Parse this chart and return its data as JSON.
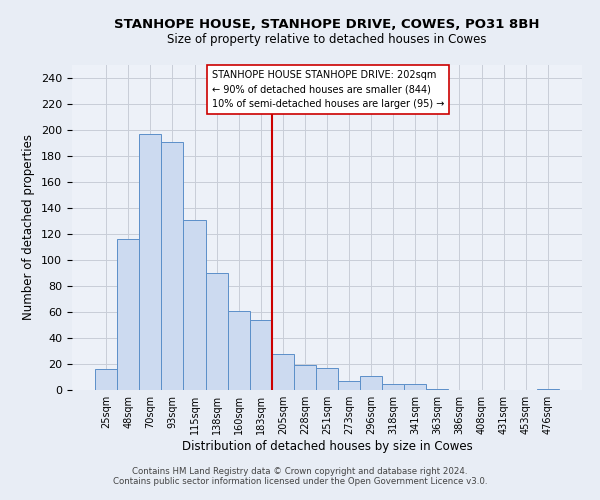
{
  "title": "STANHOPE HOUSE, STANHOPE DRIVE, COWES, PO31 8BH",
  "subtitle": "Size of property relative to detached houses in Cowes",
  "xlabel": "Distribution of detached houses by size in Cowes",
  "ylabel": "Number of detached properties",
  "bar_labels": [
    "25sqm",
    "48sqm",
    "70sqm",
    "93sqm",
    "115sqm",
    "138sqm",
    "160sqm",
    "183sqm",
    "205sqm",
    "228sqm",
    "251sqm",
    "273sqm",
    "296sqm",
    "318sqm",
    "341sqm",
    "363sqm",
    "386sqm",
    "408sqm",
    "431sqm",
    "453sqm",
    "476sqm"
  ],
  "bar_heights": [
    16,
    116,
    197,
    191,
    131,
    90,
    61,
    54,
    28,
    19,
    17,
    7,
    11,
    5,
    5,
    1,
    0,
    0,
    0,
    0,
    1
  ],
  "bar_color": "#ccdaf0",
  "bar_edge_color": "#5b8fc9",
  "vline_color": "#cc0000",
  "ylim": [
    0,
    250
  ],
  "yticks": [
    0,
    20,
    40,
    60,
    80,
    100,
    120,
    140,
    160,
    180,
    200,
    220,
    240
  ],
  "annotation_line1": "STANHOPE HOUSE STANHOPE DRIVE: 202sqm",
  "annotation_line2": "← 90% of detached houses are smaller (844)",
  "annotation_line3": "10% of semi-detached houses are larger (95) →",
  "annotation_box_edge_color": "#cc0000",
  "footer_line1": "Contains HM Land Registry data © Crown copyright and database right 2024.",
  "footer_line2": "Contains public sector information licensed under the Open Government Licence v3.0.",
  "bg_color": "#e8edf5",
  "plot_bg_color": "#edf1f8",
  "grid_color": "#c8cdd8"
}
